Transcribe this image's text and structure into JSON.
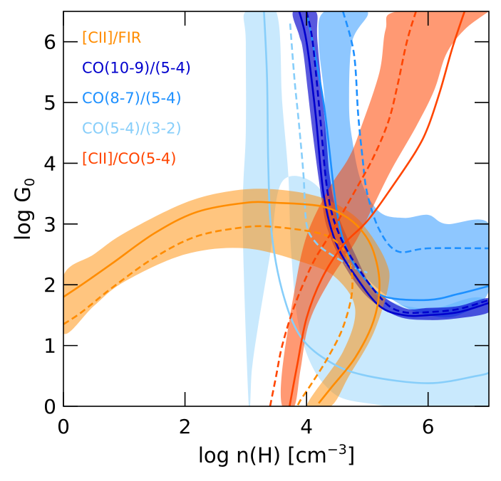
{
  "chart_data": {
    "type": "line",
    "title": "",
    "xlabel_main": "log n(H) [cm",
    "xlabel_sup": "−3",
    "xlabel_end": "]",
    "ylabel_main": "log G",
    "ylabel_sub": "0",
    "xlim": [
      0,
      7
    ],
    "ylim": [
      0,
      6.5
    ],
    "xticks": [
      0,
      2,
      4,
      6
    ],
    "yticks": [
      0,
      1,
      2,
      3,
      4,
      5,
      6
    ],
    "xtick_labels": [
      "0",
      "2",
      "4",
      "6"
    ],
    "ytick_labels": [
      "0",
      "1",
      "2",
      "3",
      "4",
      "5",
      "6"
    ],
    "legend_position": "top-left",
    "series": [
      {
        "name": "CO(5-4)/(3-2)",
        "color": "#87cefa",
        "band_opacity": 0.45,
        "band_outer": [
          [
            3.0,
            6.5
          ],
          [
            3.5,
            6.5
          ],
          [
            3.6,
            5.0
          ],
          [
            3.7,
            3.8
          ],
          [
            3.75,
            2.5
          ],
          [
            3.9,
            1.2
          ],
          [
            4.3,
            0.35
          ],
          [
            5.0,
            0.05
          ],
          [
            7.0,
            0.0
          ],
          [
            7.0,
            1.7
          ],
          [
            6.0,
            1.6
          ],
          [
            5.2,
            1.8
          ],
          [
            4.8,
            2.2
          ],
          [
            4.5,
            2.7
          ],
          [
            4.2,
            3.6
          ],
          [
            3.6,
            3.7
          ],
          [
            3.4,
            2.5
          ],
          [
            3.2,
            1.3
          ],
          [
            3.1,
            0.6
          ],
          [
            3.05,
            0.0
          ],
          [
            2.95,
            3.0
          ],
          [
            3.0,
            4.5
          ],
          [
            3.0,
            6.0
          ]
        ],
        "band_inner": [],
        "solid": [
          [
            3.3,
            6.5
          ],
          [
            3.35,
            5.4
          ],
          [
            3.37,
            4.0
          ],
          [
            3.42,
            2.9
          ],
          [
            3.6,
            1.9
          ],
          [
            3.9,
            1.15
          ],
          [
            4.4,
            0.72
          ],
          [
            5.0,
            0.5
          ],
          [
            6.0,
            0.38
          ],
          [
            6.8,
            0.5
          ],
          [
            7.0,
            0.55
          ]
        ],
        "dashed": [
          [
            3.73,
            6.3
          ],
          [
            3.8,
            5.4
          ],
          [
            3.88,
            4.6
          ],
          [
            3.95,
            3.8
          ],
          [
            4.0,
            3.0
          ],
          [
            4.15,
            2.7
          ],
          [
            4.4,
            2.5
          ],
          [
            4.75,
            2.3
          ],
          [
            5.0,
            2.2
          ]
        ]
      },
      {
        "name": "CO(8-7)/(5-4)",
        "color": "#1e90ff",
        "band_opacity": 0.5,
        "band_outer": [
          [
            4.3,
            6.5
          ],
          [
            5.0,
            6.5
          ],
          [
            4.75,
            6.0
          ],
          [
            4.7,
            5.0
          ],
          [
            4.75,
            4.4
          ],
          [
            4.9,
            3.7
          ],
          [
            5.2,
            3.2
          ],
          [
            5.6,
            3.1
          ],
          [
            6.0,
            3.15
          ],
          [
            6.3,
            3.0
          ],
          [
            7.0,
            3.0
          ],
          [
            7.0,
            1.9
          ],
          [
            6.5,
            1.5
          ],
          [
            6.0,
            1.5
          ],
          [
            5.5,
            1.7
          ],
          [
            5.0,
            2.1
          ],
          [
            4.6,
            2.7
          ],
          [
            4.3,
            3.8
          ],
          [
            4.3,
            5.0
          ],
          [
            4.2,
            6.0
          ]
        ],
        "band_inner": [],
        "solid": [
          [
            4.0,
            6.5
          ],
          [
            4.28,
            5.0
          ],
          [
            4.5,
            3.2
          ],
          [
            4.7,
            2.5
          ],
          [
            5.0,
            2.05
          ],
          [
            5.3,
            1.8
          ],
          [
            6.0,
            1.75
          ],
          [
            6.5,
            1.85
          ],
          [
            7.0,
            1.98
          ]
        ],
        "dashed": [
          [
            4.6,
            6.5
          ],
          [
            4.78,
            5.8
          ],
          [
            4.85,
            4.8
          ],
          [
            4.92,
            4.1
          ],
          [
            5.0,
            3.5
          ],
          [
            5.2,
            2.9
          ],
          [
            5.5,
            2.55
          ],
          [
            6.0,
            2.6
          ],
          [
            7.0,
            2.6
          ]
        ]
      },
      {
        "name": "CO(10-9)/(5-4)",
        "color": "#0000cd",
        "band_opacity": 0.65,
        "band_outer": [
          [
            3.78,
            6.5
          ],
          [
            4.15,
            6.5
          ],
          [
            4.18,
            6.0
          ],
          [
            4.32,
            4.5
          ],
          [
            4.38,
            3.8
          ],
          [
            4.5,
            3.2
          ],
          [
            4.8,
            2.5
          ],
          [
            5.1,
            1.95
          ],
          [
            5.6,
            1.62
          ],
          [
            6.0,
            1.62
          ],
          [
            6.5,
            1.65
          ],
          [
            7.0,
            1.78
          ],
          [
            7.0,
            1.55
          ],
          [
            6.5,
            1.45
          ],
          [
            6.0,
            1.42
          ],
          [
            5.5,
            1.48
          ],
          [
            5.0,
            1.8
          ],
          [
            4.6,
            2.35
          ],
          [
            4.35,
            2.9
          ],
          [
            4.25,
            3.4
          ],
          [
            4.1,
            4.5
          ],
          [
            3.95,
            5.8
          ],
          [
            3.88,
            6.1
          ]
        ],
        "band_inner": [],
        "solid": [
          [
            3.88,
            6.5
          ],
          [
            4.0,
            6.0
          ],
          [
            4.15,
            4.8
          ],
          [
            4.28,
            3.5
          ],
          [
            4.48,
            2.7
          ],
          [
            4.8,
            2.15
          ],
          [
            5.2,
            1.65
          ],
          [
            5.6,
            1.5
          ],
          [
            6.0,
            1.5
          ],
          [
            6.5,
            1.55
          ],
          [
            7.0,
            1.7
          ]
        ],
        "dashed": [
          [
            4.0,
            6.5
          ],
          [
            4.1,
            6.0
          ],
          [
            4.22,
            4.8
          ],
          [
            4.35,
            3.5
          ],
          [
            4.55,
            2.8
          ],
          [
            4.9,
            2.2
          ],
          [
            5.3,
            1.7
          ],
          [
            5.6,
            1.55
          ],
          [
            6.0,
            1.55
          ],
          [
            6.5,
            1.6
          ],
          [
            7.0,
            1.75
          ]
        ]
      },
      {
        "name": "[CII]/FIR",
        "color": "#ff8c00",
        "band_opacity": 0.5,
        "band_outer": [
          [
            0.0,
            2.15
          ],
          [
            0.5,
            2.5
          ],
          [
            1.0,
            2.85
          ],
          [
            2.0,
            3.35
          ],
          [
            2.8,
            3.55
          ],
          [
            3.5,
            3.57
          ],
          [
            4.2,
            3.45
          ],
          [
            4.7,
            3.2
          ],
          [
            5.0,
            2.9
          ],
          [
            5.3,
            2.4
          ],
          [
            5.35,
            2.0
          ],
          [
            5.1,
            1.2
          ],
          [
            4.7,
            0.5
          ],
          [
            4.4,
            0.0
          ],
          [
            4.0,
            0.0
          ],
          [
            4.6,
            0.9
          ],
          [
            4.8,
            1.6
          ],
          [
            4.5,
            2.1
          ],
          [
            4.0,
            2.35
          ],
          [
            3.0,
            2.6
          ],
          [
            2.0,
            2.5
          ],
          [
            1.0,
            2.05
          ],
          [
            0.5,
            1.65
          ],
          [
            0.0,
            1.2
          ]
        ],
        "band_inner": [],
        "solid": [
          [
            0.0,
            1.8
          ],
          [
            0.3,
            2.0
          ],
          [
            0.8,
            2.35
          ],
          [
            1.5,
            2.85
          ],
          [
            2.2,
            3.2
          ],
          [
            3.0,
            3.35
          ],
          [
            3.5,
            3.35
          ],
          [
            4.2,
            3.3
          ],
          [
            4.6,
            3.15
          ],
          [
            4.9,
            2.9
          ],
          [
            5.1,
            2.55
          ],
          [
            5.2,
            2.0
          ],
          [
            5.1,
            1.4
          ],
          [
            4.8,
            0.8
          ],
          [
            4.4,
            0.3
          ],
          [
            4.2,
            0.05
          ]
        ],
        "dashed": [
          [
            0.0,
            1.35
          ],
          [
            0.3,
            1.55
          ],
          [
            0.8,
            1.95
          ],
          [
            1.5,
            2.45
          ],
          [
            2.2,
            2.8
          ],
          [
            3.0,
            2.95
          ],
          [
            3.5,
            2.95
          ],
          [
            4.2,
            2.85
          ],
          [
            4.5,
            2.7
          ],
          [
            4.7,
            2.4
          ],
          [
            4.75,
            1.9
          ],
          [
            4.6,
            1.3
          ],
          [
            4.35,
            0.8
          ],
          [
            4.1,
            0.4
          ],
          [
            3.9,
            0.1
          ],
          [
            3.85,
            0.0
          ]
        ]
      },
      {
        "name": "[CII]/CO(5-4)",
        "color": "#ff4500",
        "band_opacity": 0.55,
        "band_outer": [
          [
            3.6,
            0.0
          ],
          [
            3.8,
            0.0
          ],
          [
            3.9,
            0.6
          ],
          [
            4.05,
            1.4
          ],
          [
            4.4,
            2.1
          ],
          [
            4.8,
            2.7
          ],
          [
            5.1,
            3.3
          ],
          [
            5.4,
            3.9
          ],
          [
            5.8,
            4.6
          ],
          [
            6.1,
            5.2
          ],
          [
            6.3,
            5.8
          ],
          [
            6.6,
            6.2
          ],
          [
            7.0,
            6.5
          ],
          [
            7.0,
            6.5
          ],
          [
            5.5,
            6.5
          ],
          [
            5.3,
            6.2
          ],
          [
            5.2,
            5.5
          ],
          [
            4.9,
            4.6
          ],
          [
            4.7,
            4.1
          ],
          [
            4.35,
            3.55
          ],
          [
            4.0,
            2.8
          ],
          [
            3.8,
            1.9
          ],
          [
            3.6,
            0.6
          ]
        ],
        "band_inner": [],
        "solid": [
          [
            3.72,
            0.0
          ],
          [
            3.85,
            0.7
          ],
          [
            4.0,
            1.45
          ],
          [
            4.25,
            2.1
          ],
          [
            4.6,
            2.65
          ],
          [
            5.0,
            3.05
          ],
          [
            5.4,
            3.6
          ],
          [
            5.8,
            4.2
          ],
          [
            6.0,
            4.6
          ],
          [
            6.2,
            5.2
          ],
          [
            6.4,
            5.9
          ],
          [
            6.6,
            6.5
          ]
        ],
        "dashed": [
          [
            3.4,
            0.0
          ],
          [
            3.5,
            0.5
          ],
          [
            3.6,
            1.0
          ],
          [
            3.8,
            1.65
          ],
          [
            4.1,
            2.35
          ],
          [
            4.4,
            2.85
          ],
          [
            4.8,
            3.55
          ],
          [
            5.1,
            4.1
          ],
          [
            5.35,
            4.7
          ],
          [
            5.5,
            5.3
          ],
          [
            5.65,
            6.0
          ],
          [
            5.8,
            6.5
          ]
        ]
      }
    ],
    "legend": [
      {
        "label": "[CII]/FIR",
        "color": "#ff8c00"
      },
      {
        "label": "CO(10-9)/(5-4)",
        "color": "#0000cd"
      },
      {
        "label": "CO(8-7)/(5-4)",
        "color": "#1e90ff"
      },
      {
        "label": "CO(5-4)/(3-2)",
        "color": "#87cefa"
      },
      {
        "label": "[CII]/CO(5-4)",
        "color": "#ff4500"
      }
    ]
  }
}
